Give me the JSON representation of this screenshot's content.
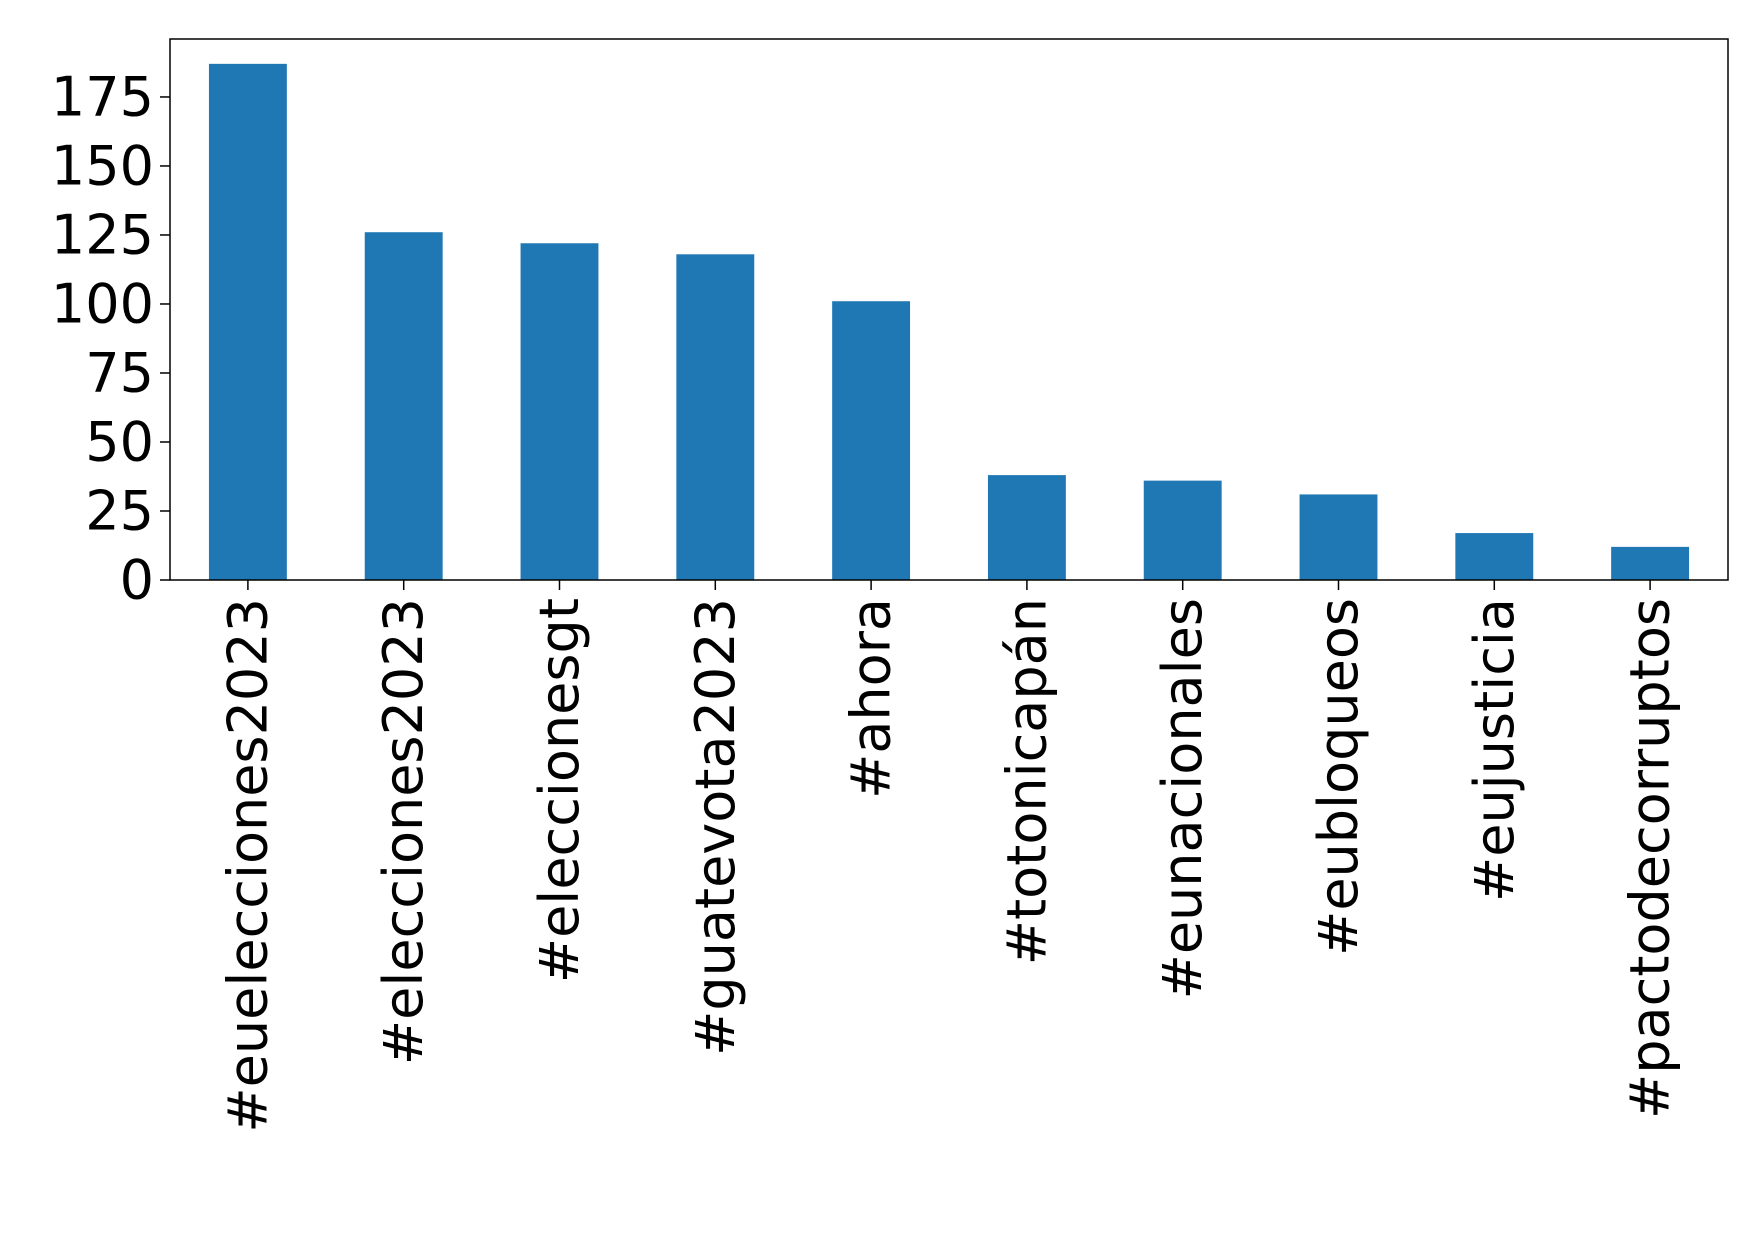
{
  "chart_data": {
    "type": "bar",
    "categories": [
      "#euelecciones2023",
      "#elecciones2023",
      "#eleccionesgt",
      "#guatevota2023",
      "#ahora",
      "#totonicapán",
      "#eunacionales",
      "#eubloqueos",
      "#eujusticia",
      "#pactodecorruptos"
    ],
    "values": [
      187,
      126,
      122,
      118,
      101,
      38,
      36,
      31,
      17,
      12
    ],
    "color": "#1f77b4",
    "ylim": [
      0,
      196
    ],
    "yticks": [
      0,
      25,
      50,
      75,
      100,
      125,
      150,
      175
    ],
    "grid": false
  }
}
